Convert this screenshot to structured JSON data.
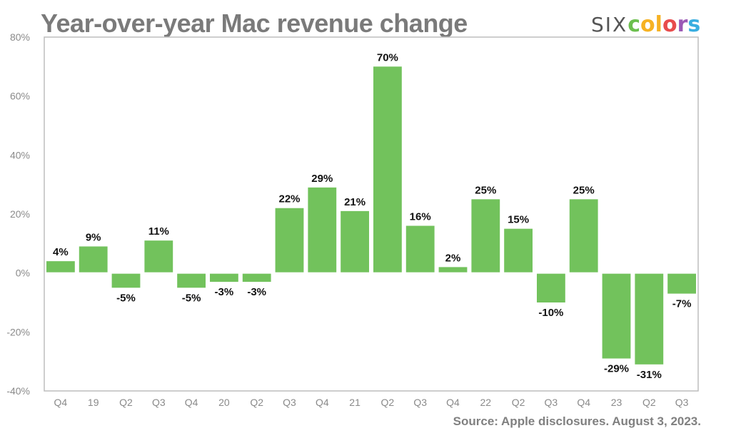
{
  "header": {
    "title": "Year-over-year Mac revenue change",
    "logo": {
      "prefix": "SIX",
      "letters": [
        {
          "char": "c",
          "color": "#6cbf4e"
        },
        {
          "char": "o",
          "color": "#f6b223"
        },
        {
          "char": "l",
          "color": "#f6b223"
        },
        {
          "char": "o",
          "color": "#e84c4c"
        },
        {
          "char": "r",
          "color": "#9b59b6"
        },
        {
          "char": "s",
          "color": "#3aaee0"
        }
      ]
    }
  },
  "footer": {
    "source": "Source: Apple disclosures. August 3, 2023."
  },
  "chart_data": {
    "type": "bar",
    "title": "Year-over-year Mac revenue change",
    "xlabel": "",
    "ylabel": "",
    "ylim": [
      -40,
      80
    ],
    "yticks": [
      -40,
      -20,
      0,
      20,
      40,
      60,
      80
    ],
    "ytick_labels": [
      "-40%",
      "-20%",
      "0%",
      "20%",
      "40%",
      "60%",
      "80%"
    ],
    "grid": false,
    "legend": "none",
    "bar_color": "#72c25c",
    "categories": [
      "Q4",
      "19",
      "Q2",
      "Q3",
      "Q4",
      "20",
      "Q2",
      "Q3",
      "Q4",
      "21",
      "Q2",
      "Q3",
      "Q4",
      "22",
      "Q2",
      "Q3",
      "Q4",
      "23",
      "Q2",
      "Q3"
    ],
    "values": [
      4,
      9,
      -5,
      11,
      -5,
      -3,
      -3,
      22,
      29,
      21,
      70,
      16,
      2,
      25,
      15,
      -10,
      25,
      -29,
      -31,
      -7
    ],
    "data_labels": [
      "4%",
      "9%",
      "-5%",
      "11%",
      "-5%",
      "-3%",
      "-3%",
      "22%",
      "29%",
      "21%",
      "70%",
      "16%",
      "2%",
      "25%",
      "15%",
      "-10%",
      "25%",
      "-29%",
      "-31%",
      "-7%"
    ],
    "source": "Source: Apple disclosures. August 3, 2023."
  }
}
